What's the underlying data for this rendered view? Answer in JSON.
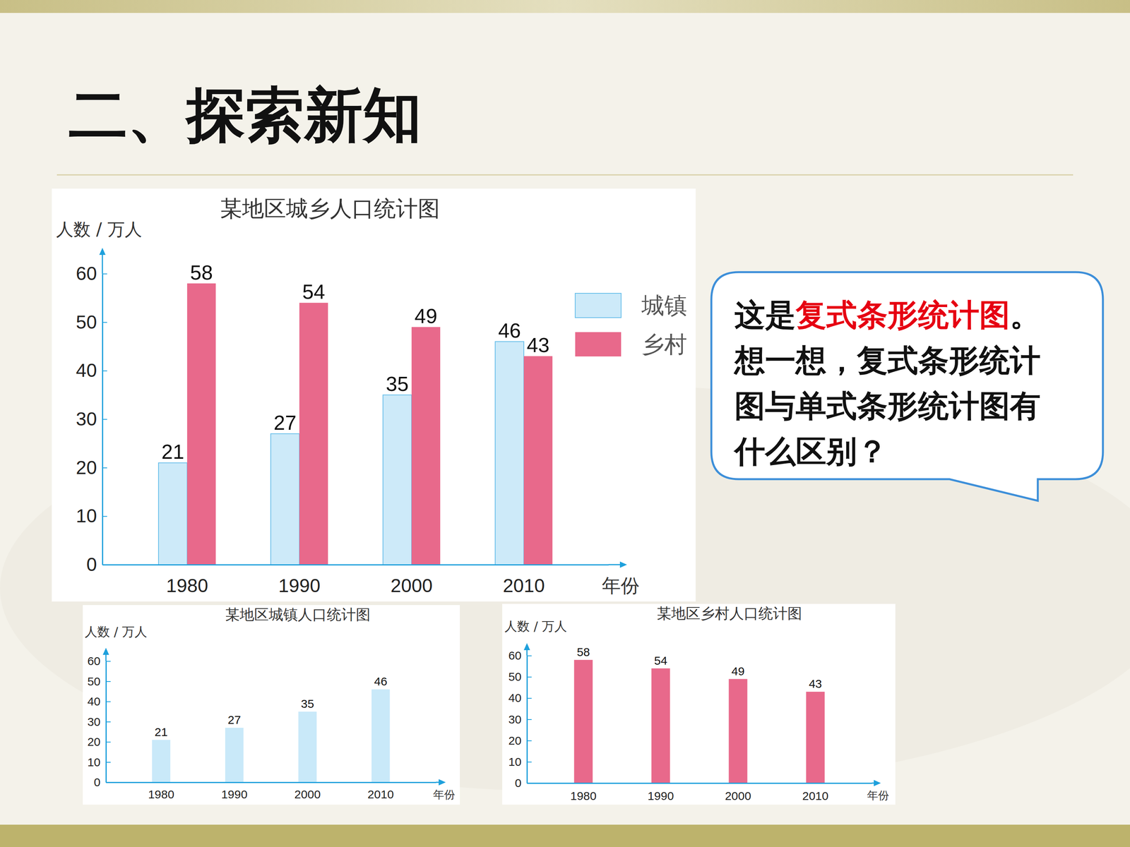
{
  "slide": {
    "title": "二、探索新知",
    "bubble": [
      {
        "text": "这是"
      },
      {
        "text": "复式条形统计图",
        "color": "#e60012"
      },
      {
        "text": "。"
      },
      {
        "text": "想一想，复式条形统计图与单式条形统计图有什么区别？"
      }
    ]
  },
  "chart_data": [
    {
      "type": "bar",
      "title": "某地区城乡人口统计图",
      "ylabel": "人数 / 万人",
      "xlabel": "年份",
      "categories": [
        "1980",
        "1990",
        "2000",
        "2010"
      ],
      "series": [
        {
          "name": "城镇",
          "color": "#cdeaf9",
          "values": [
            21,
            27,
            35,
            46
          ]
        },
        {
          "name": "乡村",
          "color": "#e8698b",
          "values": [
            58,
            54,
            49,
            43
          ]
        }
      ],
      "ylim": [
        0,
        60
      ],
      "yticks": [
        0,
        10,
        20,
        30,
        40,
        50,
        60
      ],
      "data_labels": true,
      "legend": "upper right"
    },
    {
      "type": "bar",
      "title": "某地区城镇人口统计图",
      "ylabel": "人数 / 万人",
      "xlabel": "年份",
      "categories": [
        "1980",
        "1990",
        "2000",
        "2010"
      ],
      "values": [
        21,
        27,
        35,
        46
      ],
      "color": "#c9e9f9",
      "ylim": [
        0,
        60
      ],
      "yticks": [
        0,
        10,
        20,
        30,
        40,
        50,
        60
      ],
      "data_labels": true
    },
    {
      "type": "bar",
      "title": "某地区乡村人口统计图",
      "ylabel": "人数 / 万人",
      "xlabel": "年份",
      "categories": [
        "1980",
        "1990",
        "2000",
        "2010"
      ],
      "values": [
        58,
        54,
        49,
        43
      ],
      "color": "#e8698b",
      "ylim": [
        0,
        60
      ],
      "yticks": [
        0,
        10,
        20,
        30,
        40,
        50,
        60
      ],
      "data_labels": true
    }
  ]
}
